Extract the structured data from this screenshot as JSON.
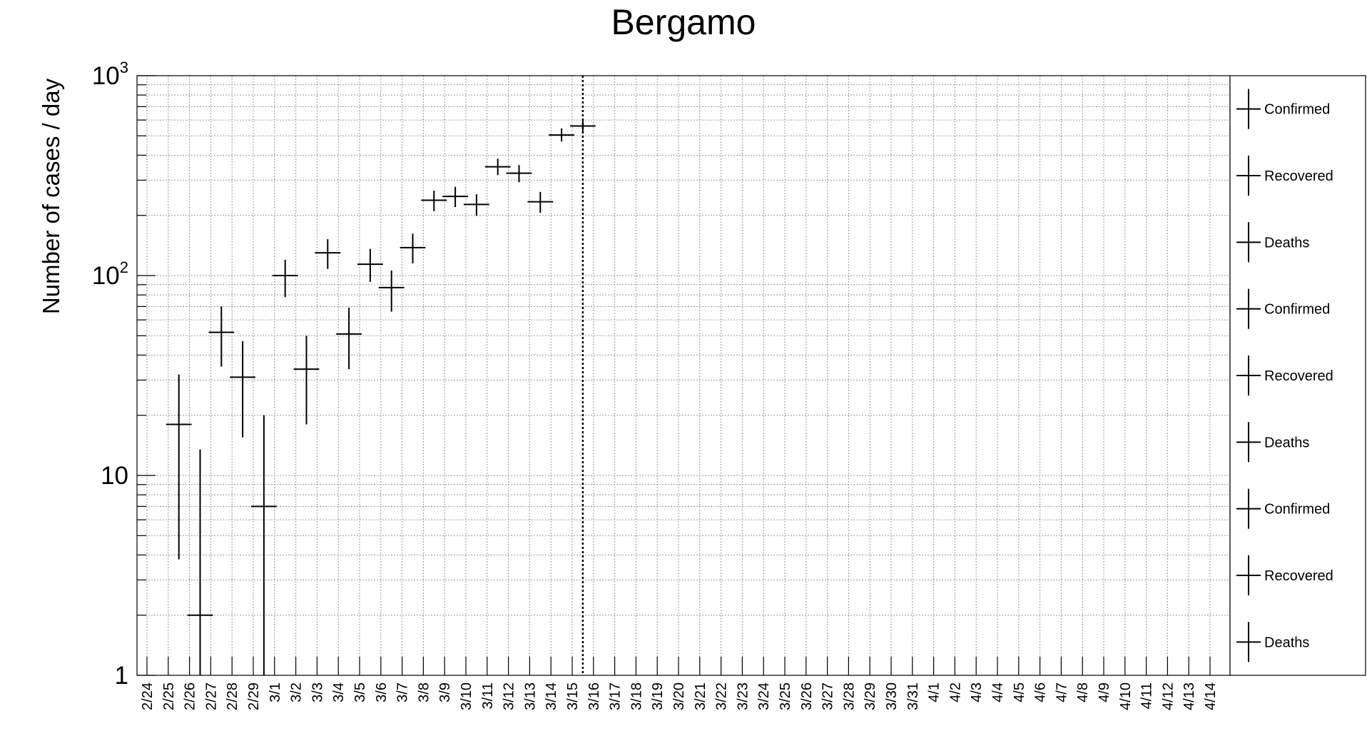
{
  "chart_data": {
    "type": "scatter",
    "title": "Bergamo",
    "xlabel": "",
    "ylabel": "Number of cases / day",
    "yscale": "log",
    "ylim": [
      1,
      1000
    ],
    "ytick_labels": [
      {
        "value": 1,
        "base": "1",
        "exp": ""
      },
      {
        "value": 10,
        "base": "10",
        "exp": ""
      },
      {
        "value": 100,
        "base": "10",
        "exp": "2"
      },
      {
        "value": 1000,
        "base": "10",
        "exp": "3"
      }
    ],
    "grid": true,
    "categories": [
      "2/24",
      "2/25",
      "2/26",
      "2/27",
      "2/28",
      "2/29",
      "3/1",
      "3/2",
      "3/3",
      "3/4",
      "3/5",
      "3/6",
      "3/7",
      "3/8",
      "3/9",
      "3/10",
      "3/11",
      "3/12",
      "3/13",
      "3/14",
      "3/15",
      "3/16",
      "3/17",
      "3/18",
      "3/19",
      "3/20",
      "3/21",
      "3/22",
      "3/23",
      "3/24",
      "3/25",
      "3/26",
      "3/27",
      "3/28",
      "3/29",
      "3/30",
      "3/31",
      "4/1",
      "4/2",
      "4/3",
      "4/4",
      "4/5",
      "4/6",
      "4/7",
      "4/8",
      "4/9",
      "4/10",
      "4/11",
      "4/12",
      "4/13",
      "4/14"
    ],
    "vertical_marker_after": "3/15",
    "legend_position": "right",
    "legend": [
      "Confirmed",
      "Recovered",
      "Deaths",
      "Confirmed",
      "Recovered",
      "Deaths",
      "Confirmed",
      "Recovered",
      "Deaths"
    ],
    "series": [
      {
        "points": [
          {
            "x": "2/25",
            "y": 18,
            "err_low": 3.8,
            "err_high": 32
          },
          {
            "x": "2/26",
            "y": 2,
            "err_low": 1,
            "err_high": 13.5
          },
          {
            "x": "2/27",
            "y": 52,
            "err_low": 35,
            "err_high": 70
          },
          {
            "x": "2/28",
            "y": 31,
            "err_low": 15.5,
            "err_high": 47
          },
          {
            "x": "2/29",
            "y": 7,
            "err_low": 1,
            "err_high": 20
          },
          {
            "x": "3/1",
            "y": 100,
            "err_low": 78,
            "err_high": 120
          },
          {
            "x": "3/2",
            "y": 34,
            "err_low": 18,
            "err_high": 50
          },
          {
            "x": "3/3",
            "y": 130,
            "err_low": 108,
            "err_high": 152
          },
          {
            "x": "3/4",
            "y": 51,
            "err_low": 34,
            "err_high": 69
          },
          {
            "x": "3/5",
            "y": 114,
            "err_low": 93,
            "err_high": 136
          },
          {
            "x": "3/6",
            "y": 87,
            "err_low": 66,
            "err_high": 106
          },
          {
            "x": "3/7",
            "y": 138,
            "err_low": 115,
            "err_high": 162
          },
          {
            "x": "3/8",
            "y": 238,
            "err_low": 210,
            "err_high": 266
          },
          {
            "x": "3/9",
            "y": 249,
            "err_low": 220,
            "err_high": 278
          },
          {
            "x": "3/10",
            "y": 227,
            "err_low": 199,
            "err_high": 255
          },
          {
            "x": "3/11",
            "y": 350,
            "err_low": 318,
            "err_high": 384
          },
          {
            "x": "3/12",
            "y": 325,
            "err_low": 293,
            "err_high": 357
          },
          {
            "x": "3/13",
            "y": 234,
            "err_low": 206,
            "err_high": 262
          },
          {
            "x": "3/14",
            "y": 505,
            "err_low": 468,
            "err_high": 545
          },
          {
            "x": "3/15",
            "y": 560,
            "err_low": 523,
            "err_high": 600
          }
        ]
      }
    ]
  }
}
